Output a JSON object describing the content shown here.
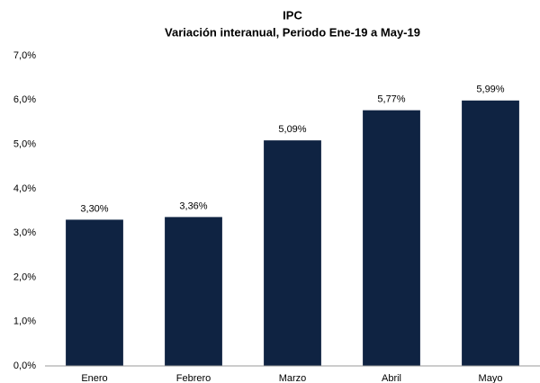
{
  "chart_data": {
    "type": "bar",
    "title": "IPC",
    "subtitle": "Variación interanual, Periodo Ene-19 a May-19",
    "categories": [
      "Enero",
      "Febrero",
      "Marzo",
      "Abril",
      "Mayo"
    ],
    "values": [
      3.3,
      3.36,
      5.09,
      5.77,
      5.99
    ],
    "value_labels": [
      "3,30%",
      "3,36%",
      "5,09%",
      "5,77%",
      "5,99%"
    ],
    "color": "#0f2342",
    "ylim": [
      0,
      7
    ],
    "yticks": [
      {
        "value": 0,
        "label": "0,0%"
      },
      {
        "value": 1,
        "label": "1,0%"
      },
      {
        "value": 2,
        "label": "2,0%"
      },
      {
        "value": 3,
        "label": "3,0%"
      },
      {
        "value": 4,
        "label": "4,0%"
      },
      {
        "value": 5,
        "label": "5,0%"
      },
      {
        "value": 6,
        "label": "6,0%"
      },
      {
        "value": 7,
        "label": "7,0%"
      }
    ],
    "grid": false
  }
}
